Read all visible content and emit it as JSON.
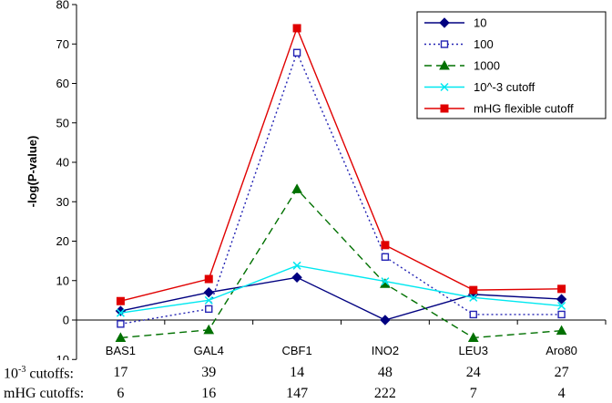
{
  "chart_data": {
    "type": "line",
    "categories": [
      "BAS1",
      "GAL4",
      "CBF1",
      "INO2",
      "LEU3",
      "Aro80"
    ],
    "ylabel": "-log(P-value)",
    "xlabel": "",
    "title": "",
    "ylim": [
      -10,
      80
    ],
    "yticks": [
      -10,
      0,
      10,
      20,
      30,
      40,
      50,
      60,
      70,
      80
    ],
    "grid": false,
    "legend": "top-right",
    "series": [
      {
        "name": "10",
        "values": [
          2.3,
          7.0,
          10.8,
          0.0,
          6.5,
          5.3
        ],
        "color": "#000080",
        "dash": "solid",
        "marker": "diamond"
      },
      {
        "name": "100",
        "values": [
          -1.0,
          2.8,
          67.8,
          16.0,
          1.4,
          1.4
        ],
        "color": "#2323b4",
        "dash": "dotted",
        "marker": "square-open"
      },
      {
        "name": "1000",
        "values": [
          -4.5,
          -2.5,
          33.2,
          9.2,
          -4.5,
          -2.7
        ],
        "color": "#007000",
        "dash": "dashed",
        "marker": "triangle"
      },
      {
        "name": "10^-3 cutoff",
        "values": [
          1.8,
          5.0,
          13.8,
          9.8,
          5.7,
          3.6
        ],
        "color": "#00e8f0",
        "dash": "solid",
        "marker": "x"
      },
      {
        "name": "mHG flexible cutoff",
        "values": [
          4.8,
          10.4,
          74.0,
          19.0,
          7.6,
          7.9
        ],
        "color": "#e00000",
        "dash": "solid",
        "marker": "square"
      }
    ]
  },
  "table": {
    "rows": [
      {
        "label_base": "10",
        "label_exp": "-3",
        "label_rest": " cutoffs:",
        "values": [
          "17",
          "39",
          "14",
          "48",
          "24",
          "27"
        ]
      },
      {
        "label_base": "mHG cutoffs:",
        "label_exp": "",
        "label_rest": "",
        "values": [
          "6",
          "16",
          "147",
          "222",
          "7",
          "4"
        ]
      }
    ]
  }
}
